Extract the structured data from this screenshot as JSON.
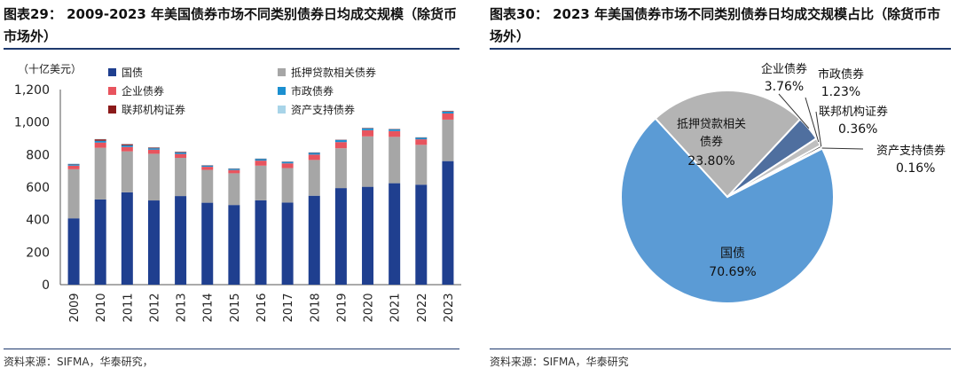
{
  "left": {
    "title": "图表29： 2009-2023 年美国债券市场不同类别债券日均成交规模（除货币市场外）",
    "source": "资料来源：SIFMA，华泰研究，",
    "chart_data": {
      "type": "bar",
      "stacked": true,
      "unit_label": "（十亿美元）",
      "categories": [
        "2009",
        "2010",
        "2011",
        "2012",
        "2013",
        "2014",
        "2015",
        "2016",
        "2017",
        "2018",
        "2019",
        "2020",
        "2021",
        "2022",
        "2023"
      ],
      "series": [
        {
          "name": "国债",
          "color": "#1f3f8f",
          "values": [
            408,
            524,
            568,
            518,
            545,
            504,
            490,
            519,
            505,
            547,
            594,
            602,
            624,
            615,
            760
          ]
        },
        {
          "name": "抵押贷款相关债券",
          "color": "#a6a6a6",
          "values": [
            302,
            318,
            252,
            287,
            235,
            202,
            195,
            213,
            212,
            220,
            245,
            310,
            285,
            245,
            255
          ]
        },
        {
          "name": "企业债券",
          "color": "#e8545e",
          "values": [
            22,
            32,
            27,
            25,
            24,
            19,
            20,
            31,
            29,
            33,
            38,
            38,
            36,
            34,
            38
          ]
        },
        {
          "name": "市政债券",
          "color": "#1b8fd0",
          "values": [
            8,
            11,
            10,
            9,
            9,
            7,
            7,
            10,
            9,
            11,
            12,
            11,
            10,
            10,
            11
          ]
        },
        {
          "name": "联邦机构证券",
          "color": "#8b1a1a",
          "values": [
            2,
            9,
            7,
            4,
            4,
            2,
            2,
            2,
            2,
            2,
            2,
            3,
            2,
            2,
            4
          ]
        },
        {
          "name": "资产支持债券",
          "color": "#a8d4e8",
          "values": [
            3,
            2,
            2,
            2,
            2,
            2,
            2,
            2,
            2,
            2,
            2,
            2,
            2,
            2,
            2
          ]
        }
      ],
      "yticks": [
        "0",
        "200",
        "400",
        "600",
        "800",
        "1,000",
        "1,200"
      ],
      "ylim": [
        0,
        1200
      ],
      "legend_placement": "top-left, two columns"
    }
  },
  "right": {
    "title": "图表30： 2023 年美国债券市场不同类别债券日均成交规模占比（除货币市场外）",
    "source": "资料来源：SIFMA，华泰研究",
    "chart_data": {
      "type": "pie",
      "slices": [
        {
          "name": "国债",
          "value": 70.69,
          "label": "70.69%",
          "color": "#5b9bd5"
        },
        {
          "name": "抵押贷款相关债券",
          "value": 23.8,
          "label": "23.80%",
          "color": "#b4b4b4"
        },
        {
          "name": "企业债券",
          "value": 3.76,
          "label": "3.76%",
          "color": "#4f6f9f"
        },
        {
          "name": "市政债券",
          "value": 1.23,
          "label": "1.23%",
          "color": "#bfbfbf"
        },
        {
          "name": "联邦机构证券",
          "value": 0.36,
          "label": "0.36%",
          "color": "#2b2b2b"
        },
        {
          "name": "资产支持债券",
          "value": 0.16,
          "label": "0.16%",
          "color": "#ffffff"
        }
      ]
    }
  }
}
